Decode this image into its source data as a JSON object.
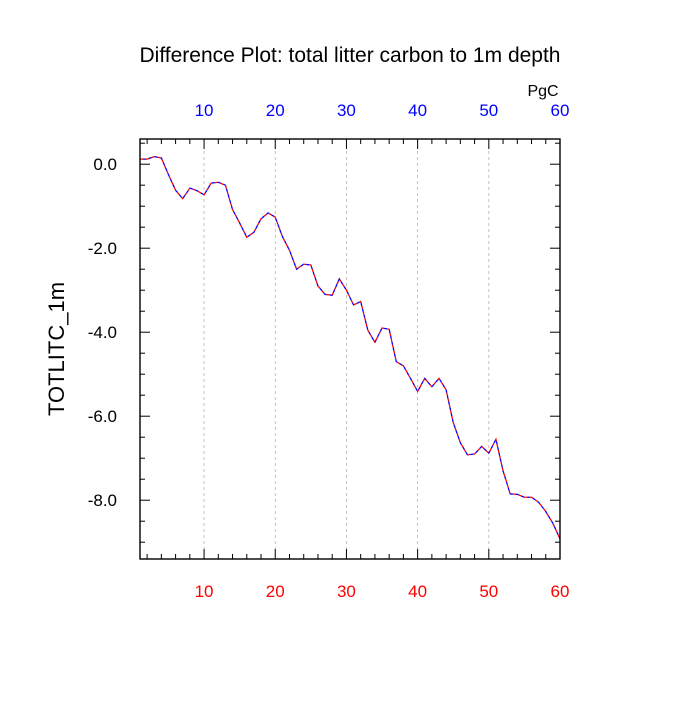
{
  "chart_data": {
    "type": "line",
    "title": "Difference Plot: total litter carbon to 1m depth",
    "units": "PgC",
    "xlabel": "",
    "ylabel": "TOTLITC_1m",
    "xlim": [
      1,
      60
    ],
    "ylim": [
      -9.4,
      0.6
    ],
    "grid": "vertical dashed lines at x ticks",
    "x_ticks": [
      10,
      20,
      30,
      40,
      50,
      60
    ],
    "x_tick_labels": [
      "10",
      "20",
      "30",
      "40",
      "50",
      "60"
    ],
    "top_tick_labels": [
      "10",
      "20",
      "30",
      "40",
      "50",
      "60"
    ],
    "y_ticks": [
      0,
      -2,
      -4,
      -6,
      -8
    ],
    "y_tick_labels": [
      "0.0",
      "-2.0",
      "-4.0",
      "-6.0",
      "-8.0"
    ],
    "colors": {
      "bottom_tick_labels": "#ff0000",
      "top_tick_labels": "#0000ff",
      "line_dash_a": "#ff0000",
      "line_dash_b": "#0000ff",
      "grid": "#b4b4b4"
    },
    "series": [
      {
        "x": [
          1,
          2,
          3,
          4,
          5,
          6,
          7,
          8,
          9,
          10,
          11,
          12,
          13,
          14,
          15,
          16,
          17,
          18,
          19,
          20,
          21,
          22,
          23,
          24,
          25,
          26,
          27,
          28,
          29,
          30,
          31,
          32,
          33,
          34,
          35,
          36,
          37,
          38,
          39,
          40,
          41,
          42,
          43,
          44,
          45,
          46,
          47,
          48,
          49,
          50,
          51,
          52,
          53,
          54,
          55,
          56,
          57,
          58,
          59,
          60
        ],
        "values": [
          0.12,
          0.12,
          0.18,
          0.15,
          -0.25,
          -0.62,
          -0.82,
          -0.57,
          -0.63,
          -0.73,
          -0.45,
          -0.43,
          -0.5,
          -1.08,
          -1.4,
          -1.74,
          -1.62,
          -1.3,
          -1.16,
          -1.26,
          -1.72,
          -2.05,
          -2.5,
          -2.38,
          -2.4,
          -2.9,
          -3.1,
          -3.12,
          -2.73,
          -3.0,
          -3.35,
          -3.27,
          -3.95,
          -4.24,
          -3.9,
          -3.93,
          -4.7,
          -4.8,
          -5.1,
          -5.41,
          -5.1,
          -5.3,
          -5.1,
          -5.37,
          -6.15,
          -6.63,
          -6.92,
          -6.9,
          -6.72,
          -6.88,
          -6.55,
          -7.3,
          -7.85,
          -7.86,
          -7.93,
          -7.93,
          -8.05,
          -8.27,
          -8.55,
          -8.92
        ]
      }
    ]
  }
}
